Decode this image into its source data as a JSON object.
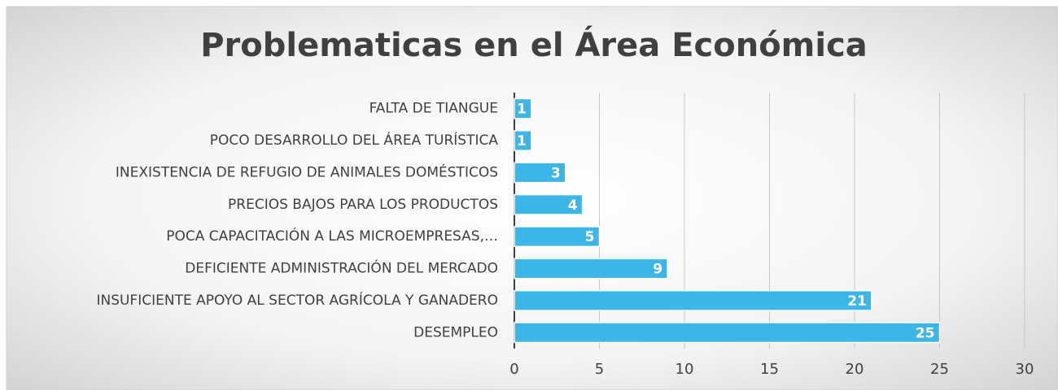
{
  "chart_data": {
    "type": "barh",
    "title": "Problematicas en el Área Económica",
    "categories": [
      "FALTA DE TIANGUE",
      "POCO DESARROLLO DEL ÁREA TURÍSTICA",
      "INEXISTENCIA DE REFUGIO DE ANIMALES DOMÉSTICOS",
      "PRECIOS BAJOS PARA LOS PRODUCTOS",
      "POCA CAPACITACIÓN A LAS MICROEMPRESAS,…",
      "DEFICIENTE ADMINISTRACIÓN DEL MERCADO",
      "INSUFICIENTE APOYO AL SECTOR AGRÍCOLA Y GANADERO",
      "DESEMPLEO"
    ],
    "values": [
      1,
      1,
      3,
      4,
      5,
      9,
      21,
      25
    ],
    "color": "#3cb6e6",
    "xlim": [
      0,
      30
    ],
    "xticks": [
      0,
      5,
      10,
      15,
      20,
      25,
      30
    ],
    "grid": true
  }
}
